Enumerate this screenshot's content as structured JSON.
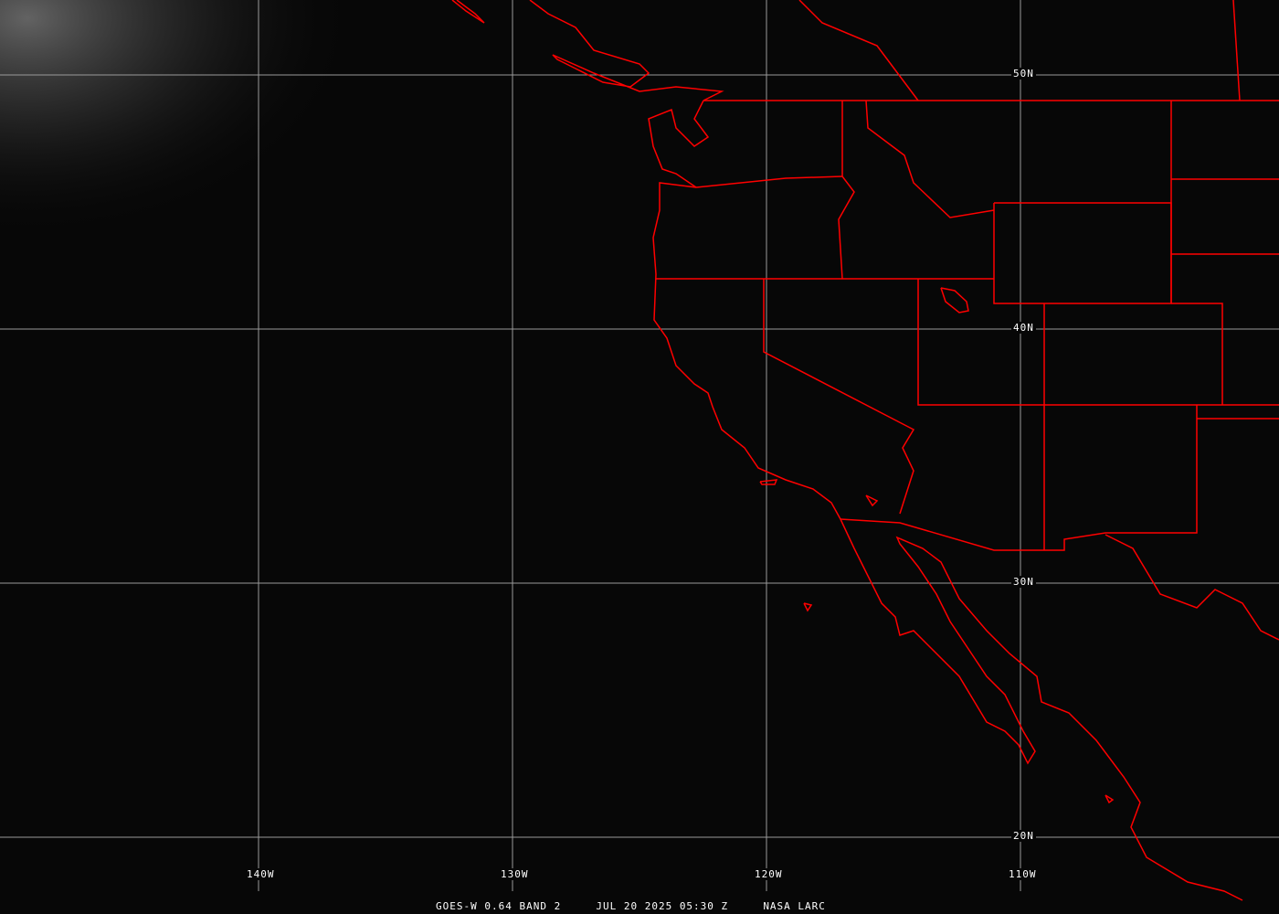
{
  "image": {
    "caption": {
      "satellite": "GOES-W 0.64 BAND 2",
      "datetime": "JUL 20 2025 05:30 Z",
      "credit": "NASA LARC"
    },
    "latitude_labels": [
      "50N",
      "40N",
      "30N",
      "20N"
    ],
    "longitude_labels": [
      "140W",
      "130W",
      "120W",
      "110W"
    ],
    "colors": {
      "borders": "#ff0000",
      "grid": "#9a9a9a",
      "background": "#070707"
    }
  }
}
